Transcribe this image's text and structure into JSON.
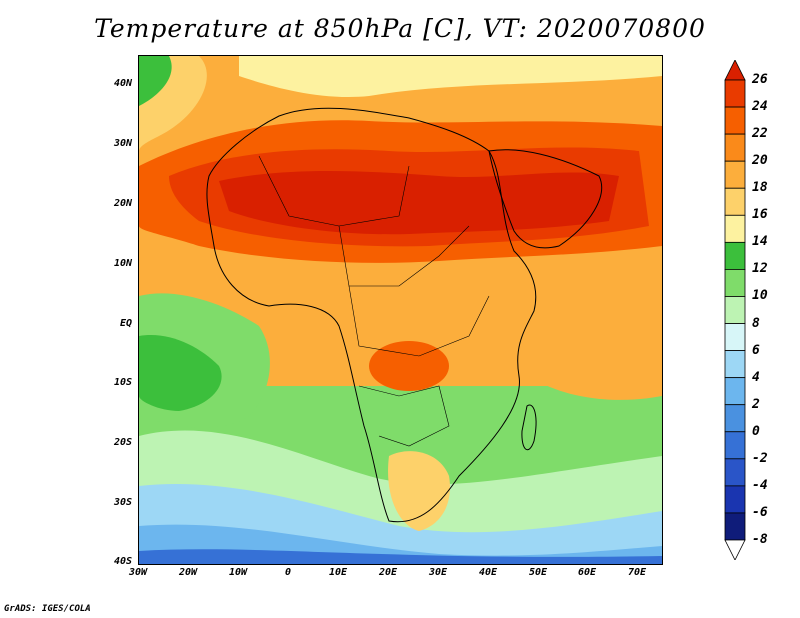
{
  "title": "Temperature at 850hPa [C], VT: 2020070800",
  "footer": "GrADS: IGES/COLA",
  "lat_labels": [
    "40N",
    "30N",
    "20N",
    "10N",
    "EQ",
    "10S",
    "20S",
    "30S",
    "40S"
  ],
  "lon_labels": [
    "30W",
    "20W",
    "10W",
    "0",
    "10E",
    "20E",
    "30E",
    "40E",
    "50E",
    "60E",
    "70E"
  ],
  "colorbar": {
    "labels": [
      "26",
      "24",
      "22",
      "20",
      "18",
      "16",
      "14",
      "12",
      "10",
      "8",
      "6",
      "4",
      "2",
      "0",
      "-2",
      "-4",
      "-6",
      "-8"
    ],
    "colors": [
      "#d92000",
      "#e93b00",
      "#f65f00",
      "#fa8a1a",
      "#fcae3c",
      "#fdd16a",
      "#fdf2a0",
      "#3cbf3c",
      "#7fdc6a",
      "#bdf3b3",
      "#d7f6f8",
      "#9dd7f5",
      "#6cb6ee",
      "#4a91e0",
      "#3671d6",
      "#2a55c8",
      "#1a35b0",
      "#0f1c7a",
      "#000a55"
    ]
  },
  "map": {
    "lat_range": [
      -40,
      45
    ],
    "lon_range": [
      -30,
      75
    ],
    "variable": "Temperature at 850hPa",
    "units": "C"
  }
}
